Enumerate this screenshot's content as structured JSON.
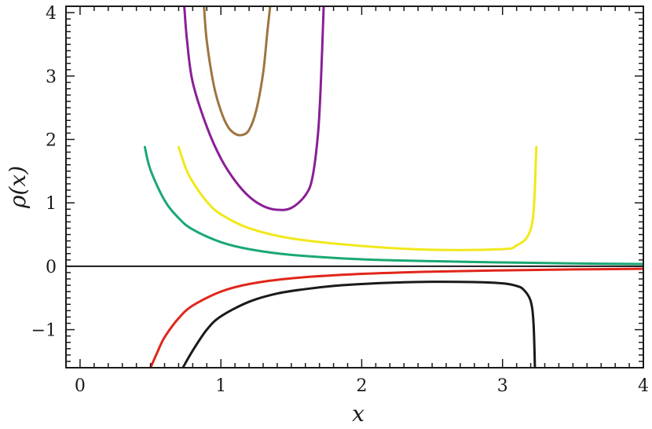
{
  "chart_data": {
    "type": "line",
    "title": "",
    "xlabel": "x",
    "ylabel": "ρ(x)",
    "xlim": [
      -0.1,
      4.0
    ],
    "ylim": [
      -1.6,
      4.1
    ],
    "xticks": [
      0,
      1,
      2,
      3,
      4
    ],
    "yticks": [
      -1,
      0,
      1,
      2,
      3,
      4
    ],
    "xtick_labels": [
      "0",
      "1",
      "2",
      "3",
      "4"
    ],
    "ytick_labels": [
      "−1",
      "0",
      "1",
      "2",
      "3",
      "4"
    ],
    "grid": false,
    "legend": "none",
    "reference_line_y": 0,
    "series": [
      {
        "color": "#1a1a1a",
        "x": [
          0.73,
          0.8,
          0.9,
          1.0,
          1.2,
          1.4,
          1.6,
          1.8,
          2.0,
          2.2,
          2.5,
          2.8,
          3.0,
          3.1,
          3.15,
          3.2,
          3.22,
          3.23
        ],
        "y": [
          -1.6,
          -1.33,
          -1.0,
          -0.79,
          -0.56,
          -0.43,
          -0.36,
          -0.31,
          -0.28,
          -0.26,
          -0.245,
          -0.25,
          -0.27,
          -0.31,
          -0.37,
          -0.55,
          -0.9,
          -1.6
        ]
      },
      {
        "color": "#e0261a",
        "x": [
          0.5,
          0.55,
          0.6,
          0.7,
          0.8,
          1.0,
          1.2,
          1.5,
          2.0,
          2.5,
          3.0,
          3.5,
          4.0
        ],
        "y": [
          -1.6,
          -1.35,
          -1.12,
          -0.82,
          -0.62,
          -0.4,
          -0.28,
          -0.19,
          -0.12,
          -0.085,
          -0.065,
          -0.05,
          -0.04
        ]
      },
      {
        "color": "#1aa873",
        "x": [
          0.46,
          0.5,
          0.6,
          0.7,
          0.8,
          1.0,
          1.2,
          1.5,
          2.0,
          2.5,
          3.0,
          3.5,
          4.0
        ],
        "y": [
          1.88,
          1.52,
          1.04,
          0.76,
          0.58,
          0.38,
          0.27,
          0.18,
          0.11,
          0.08,
          0.06,
          0.045,
          0.035
        ]
      },
      {
        "color": "#f2e81a",
        "x": [
          0.7,
          0.75,
          0.8,
          0.9,
          1.0,
          1.2,
          1.5,
          2.0,
          2.5,
          3.0,
          3.1,
          3.18,
          3.22,
          3.24
        ],
        "y": [
          1.88,
          1.55,
          1.33,
          1.02,
          0.82,
          0.6,
          0.44,
          0.32,
          0.26,
          0.27,
          0.33,
          0.48,
          0.85,
          1.88
        ]
      },
      {
        "color": "#8a1f96",
        "x": [
          0.74,
          0.76,
          0.8,
          0.9,
          1.0,
          1.1,
          1.2,
          1.3,
          1.4,
          1.5,
          1.6,
          1.65,
          1.69,
          1.71,
          1.73
        ],
        "y": [
          4.1,
          3.55,
          2.9,
          2.2,
          1.7,
          1.35,
          1.1,
          0.95,
          0.89,
          0.92,
          1.12,
          1.4,
          2.1,
          2.9,
          4.1
        ]
      },
      {
        "color": "#9e7540",
        "x": [
          0.88,
          0.9,
          0.95,
          1.0,
          1.05,
          1.1,
          1.15,
          1.2,
          1.25,
          1.3,
          1.33,
          1.35
        ],
        "y": [
          4.1,
          3.55,
          2.85,
          2.45,
          2.2,
          2.09,
          2.07,
          2.15,
          2.45,
          3.05,
          3.7,
          4.1
        ]
      }
    ]
  }
}
